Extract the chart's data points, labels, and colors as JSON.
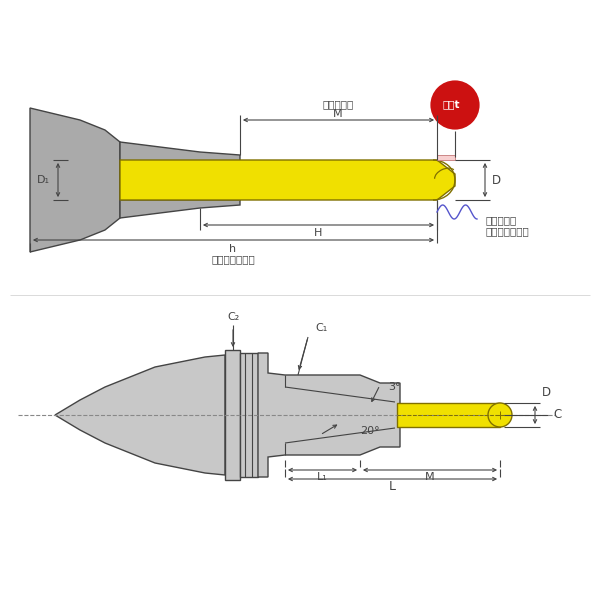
{
  "bg_color": "#ffffff",
  "line_color": "#444444",
  "gray_body": "#c8c8c8",
  "gray_dark": "#999999",
  "yellow_color": "#f0e000",
  "pink_color": "#f8d0d0",
  "red_color": "#cc1111",
  "blue_color": "#5555cc",
  "label_C2": "C₂",
  "label_C1": "C₁",
  "label_D": "D",
  "label_C": "C",
  "label_3deg": "3°",
  "label_20deg": "20°",
  "label_L1": "L₁",
  "label_M_top": "M",
  "label_L": "L",
  "label_D1": "D₁",
  "label_H": "H",
  "label_h": "h",
  "label_niku": "肉厘t",
  "label_kakou": "加工有効長",
  "label_M_bot": "M",
  "label_kogu": "工具最大挙入長",
  "label_tsukami_1": "つかみ長さ",
  "label_tsukami_2": "（最低把持長）"
}
